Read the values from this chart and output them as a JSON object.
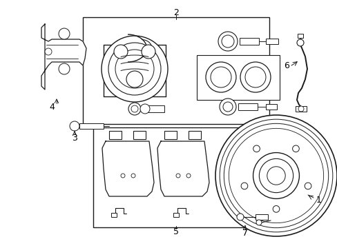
{
  "bg_color": "#ffffff",
  "line_color": "#1a1a1a",
  "label_color": "#000000",
  "fig_w": 4.89,
  "fig_h": 3.6,
  "dpi": 100
}
